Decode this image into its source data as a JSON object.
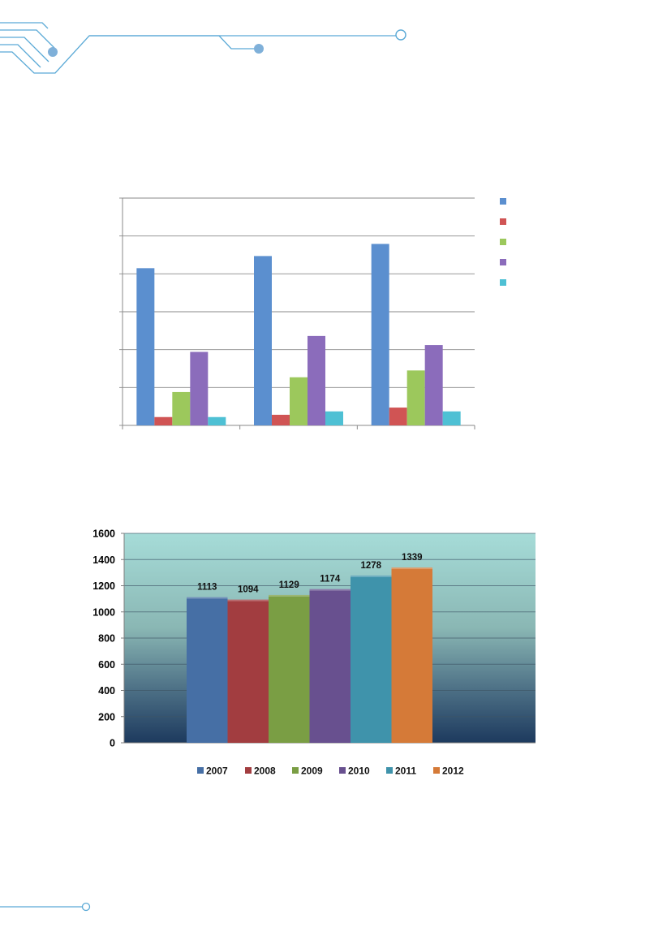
{
  "decor": {
    "line_color": "#5aa9d6",
    "dot_color": "#7fb0d9"
  },
  "chart_data": [
    {
      "type": "bar",
      "title": "",
      "categories": [
        "",
        "",
        ""
      ],
      "series": [
        {
          "values": [
            4.15,
            4.47,
            4.79
          ],
          "color": "#5b8fcf"
        },
        {
          "values": [
            0.22,
            0.28,
            0.47
          ],
          "color": "#d05454"
        },
        {
          "values": [
            0.88,
            1.27,
            1.45
          ],
          "color": "#9cc85c"
        },
        {
          "values": [
            1.94,
            2.36,
            2.12
          ],
          "color": "#8b6cbb"
        },
        {
          "values": [
            0.22,
            0.37,
            0.37
          ],
          "color": "#4ec0d4"
        }
      ],
      "ylim": [
        0,
        6
      ],
      "grid": true,
      "legend_position": "right"
    },
    {
      "type": "bar",
      "title": "",
      "categories": [
        "2007",
        "2008",
        "2009",
        "2010",
        "2011",
        "2012"
      ],
      "values": [
        1113,
        1094,
        1129,
        1174,
        1278,
        1339
      ],
      "data_labels": [
        "1113",
        "1094",
        "1129",
        "1174",
        "1278",
        "1339"
      ],
      "colors": [
        "#466fa5",
        "#a23d40",
        "#7a9e44",
        "#68508f",
        "#3f93ab",
        "#d57a38"
      ],
      "ylim": [
        0,
        1600
      ],
      "ytick_labels": [
        "0",
        "200",
        "400",
        "600",
        "800",
        "1000",
        "1200",
        "1400",
        "1600"
      ],
      "grid": true,
      "legend_position": "bottom",
      "legend": [
        "2007",
        "2008",
        "2009",
        "2010",
        "2011",
        "2012"
      ]
    }
  ]
}
